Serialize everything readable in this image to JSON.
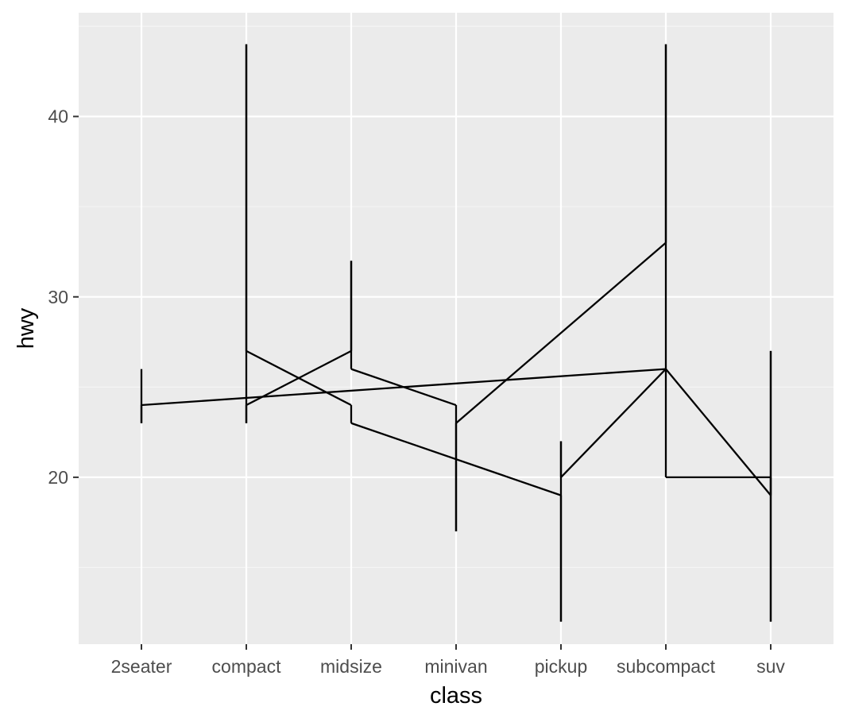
{
  "chart_data": {
    "type": "line",
    "title": "",
    "xlabel": "class",
    "ylabel": "hwy",
    "categories": [
      "2seater",
      "compact",
      "midsize",
      "minivan",
      "pickup",
      "subcompact",
      "suv"
    ],
    "ylim": [
      10.75,
      45.75
    ],
    "yticks": [
      20,
      30,
      40
    ],
    "grid": true,
    "legend": "none",
    "colors": {
      "panel_background": "#ebebeb",
      "grid_major": "#ffffff",
      "grid_minor": "#f5f5f5",
      "line": "#000000",
      "tick_label": "#4d4d4d",
      "axis_title": "#000000",
      "tick_mark": "#333333"
    },
    "path": [
      {
        "x": "2seater",
        "y": 26
      },
      {
        "x": "2seater",
        "y": 23
      },
      {
        "x": "2seater",
        "y": 24
      },
      {
        "x": "subcompact",
        "y": 26
      },
      {
        "x": "subcompact",
        "y": 44
      },
      {
        "x": "subcompact",
        "y": 33
      },
      {
        "x": "minivan",
        "y": 23
      },
      {
        "x": "minivan",
        "y": 17
      },
      {
        "x": "minivan",
        "y": 24
      },
      {
        "x": "midsize",
        "y": 26
      },
      {
        "x": "midsize",
        "y": 32
      },
      {
        "x": "midsize",
        "y": 27
      },
      {
        "x": "compact",
        "y": 24
      },
      {
        "x": "compact",
        "y": 23
      },
      {
        "x": "compact",
        "y": 44
      },
      {
        "x": "compact",
        "y": 27
      },
      {
        "x": "midsize",
        "y": 24
      },
      {
        "x": "midsize",
        "y": 23
      },
      {
        "x": "pickup",
        "y": 19
      },
      {
        "x": "pickup",
        "y": 12
      },
      {
        "x": "pickup",
        "y": 22
      },
      {
        "x": "pickup",
        "y": 20
      },
      {
        "x": "subcompact",
        "y": 26
      },
      {
        "x": "subcompact",
        "y": 20
      },
      {
        "x": "suv",
        "y": 20
      },
      {
        "x": "suv",
        "y": 12
      },
      {
        "x": "suv",
        "y": 27
      },
      {
        "x": "suv",
        "y": 19
      },
      {
        "x": "subcompact",
        "y": 26
      }
    ]
  }
}
